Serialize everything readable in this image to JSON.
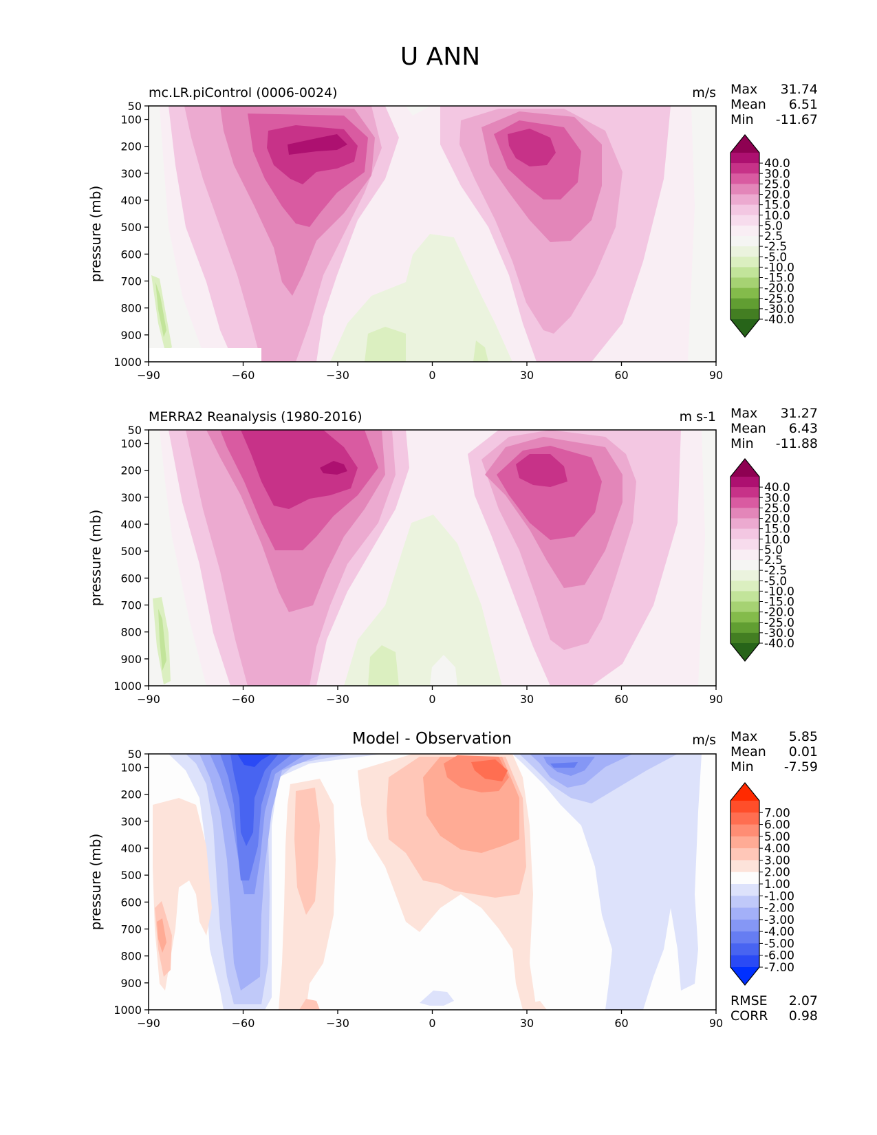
{
  "figure": {
    "title": "U ANN"
  },
  "chart_data": [
    {
      "type": "contour",
      "panel_title": "",
      "left_title": "mc.LR.piControl (0006-0024)",
      "units": "m/s",
      "ylabel": "pressure (mb)",
      "xlabel": "",
      "xlim": [
        -90,
        90
      ],
      "ylim": [
        1000,
        50
      ],
      "x_ticks": [
        "−90",
        "−60",
        "−30",
        "0",
        "30",
        "60",
        "90"
      ],
      "y_ticks": [
        "50",
        "100",
        "200",
        "300",
        "400",
        "500",
        "600",
        "700",
        "800",
        "900",
        "1000"
      ],
      "stats": [
        {
          "label": "Max",
          "value": "31.74"
        },
        {
          "label": "Mean",
          "value": "6.51"
        },
        {
          "label": "Min",
          "value": "-11.67"
        }
      ],
      "colorbar": {
        "labels": [
          "40.0",
          "30.0",
          "25.0",
          "20.0",
          "15.0",
          "10.0",
          "5.0",
          "2.5",
          "-2.5",
          "-5.0",
          "-10.0",
          "-15.0",
          "-20.0",
          "-25.0",
          "-30.0",
          "-40.0"
        ],
        "colors": [
          "#8e0152",
          "#ad1070",
          "#c73288",
          "#d95ba1",
          "#e386b9",
          "#ecaad0",
          "#f3c7e2",
          "#f7dced",
          "#f9eef4",
          "#f5f5f3",
          "#ebf3de",
          "#dbefc0",
          "#c2e49a",
          "#a6d273",
          "#84bb4b",
          "#619e32",
          "#437e22",
          "#276419"
        ]
      },
      "zonal_profile": [
        {
          "lat": -65,
          "levels": [
            {
              "p": 50,
              "u": 5
            },
            {
              "p": 100,
              "u": 10
            },
            {
              "p": 300,
              "u": 12
            },
            {
              "p": 700,
              "u": 9
            },
            {
              "p": 900,
              "u": 6
            }
          ]
        },
        {
          "lat": -45,
          "levels": [
            {
              "p": 100,
              "u": 20
            },
            {
              "p": 200,
              "u": 30
            },
            {
              "p": 300,
              "u": 27
            },
            {
              "p": 500,
              "u": 20
            },
            {
              "p": 700,
              "u": 15
            },
            {
              "p": 900,
              "u": 9
            }
          ]
        },
        {
          "lat": 0,
          "levels": [
            {
              "p": 100,
              "u": -2
            },
            {
              "p": 700,
              "u": -3
            },
            {
              "p": 900,
              "u": -5
            }
          ]
        },
        {
          "lat": 30,
          "levels": [
            {
              "p": 100,
              "u": 15
            },
            {
              "p": 200,
              "u": 27
            },
            {
              "p": 300,
              "u": 22
            },
            {
              "p": 500,
              "u": 14
            },
            {
              "p": 800,
              "u": 7
            }
          ]
        },
        {
          "lat": 75,
          "levels": [
            {
              "p": 100,
              "u": 5
            },
            {
              "p": 400,
              "u": 4
            }
          ]
        }
      ]
    },
    {
      "type": "contour",
      "panel_title": "",
      "left_title": "MERRA2 Reanalysis (1980-2016)",
      "units": "m s-1",
      "ylabel": "pressure (mb)",
      "xlabel": "",
      "xlim": [
        -90,
        90
      ],
      "ylim": [
        1000,
        50
      ],
      "x_ticks": [
        "−90",
        "−60",
        "−30",
        "0",
        "30",
        "60",
        "90"
      ],
      "y_ticks": [
        "50",
        "100",
        "200",
        "300",
        "400",
        "500",
        "600",
        "700",
        "800",
        "900",
        "1000"
      ],
      "stats": [
        {
          "label": "Max",
          "value": "31.27"
        },
        {
          "label": "Mean",
          "value": "6.43"
        },
        {
          "label": "Min",
          "value": "-11.88"
        }
      ],
      "colorbar": {
        "labels": [
          "40.0",
          "30.0",
          "25.0",
          "20.0",
          "15.0",
          "10.0",
          "5.0",
          "2.5",
          "-2.5",
          "-5.0",
          "-10.0",
          "-15.0",
          "-20.0",
          "-25.0",
          "-30.0",
          "-40.0"
        ],
        "colors": [
          "#8e0152",
          "#ad1070",
          "#c73288",
          "#d95ba1",
          "#e386b9",
          "#ecaad0",
          "#f3c7e2",
          "#f7dced",
          "#f9eef4",
          "#f5f5f3",
          "#ebf3de",
          "#dbefc0",
          "#c2e49a",
          "#a6d273",
          "#84bb4b",
          "#619e32",
          "#437e22",
          "#276419"
        ]
      },
      "zonal_profile": [
        {
          "lat": -55,
          "levels": [
            {
              "p": 50,
              "u": 25
            },
            {
              "p": 200,
              "u": 28
            },
            {
              "p": 300,
              "u": 25
            },
            {
              "p": 500,
              "u": 18
            },
            {
              "p": 700,
              "u": 12
            },
            {
              "p": 900,
              "u": 8
            }
          ]
        },
        {
          "lat": -30,
          "levels": [
            {
              "p": 200,
              "u": 31
            },
            {
              "p": 300,
              "u": 20
            }
          ]
        },
        {
          "lat": 0,
          "levels": [
            {
              "p": 100,
              "u": -2
            },
            {
              "p": 500,
              "u": -3
            },
            {
              "p": 900,
              "u": 1
            }
          ]
        },
        {
          "lat": 35,
          "levels": [
            {
              "p": 100,
              "u": 15
            },
            {
              "p": 200,
              "u": 26
            },
            {
              "p": 300,
              "u": 22
            },
            {
              "p": 500,
              "u": 14
            },
            {
              "p": 800,
              "u": 7
            }
          ]
        },
        {
          "lat": 80,
          "levels": [
            {
              "p": 100,
              "u": 4
            },
            {
              "p": 500,
              "u": 3
            }
          ]
        }
      ]
    },
    {
      "type": "contour",
      "panel_title": "Model - Observation",
      "left_title": "",
      "units": "m/s",
      "ylabel": "pressure (mb)",
      "xlabel": "",
      "xlim": [
        -90,
        90
      ],
      "ylim": [
        1000,
        50
      ],
      "x_ticks": [
        "−90",
        "−60",
        "−30",
        "0",
        "30",
        "60",
        "90"
      ],
      "y_ticks": [
        "50",
        "100",
        "200",
        "300",
        "400",
        "500",
        "600",
        "700",
        "800",
        "900",
        "1000"
      ],
      "stats": [
        {
          "label": "Max",
          "value": "5.85"
        },
        {
          "label": "Mean",
          "value": "0.01"
        },
        {
          "label": "Min",
          "value": "-7.59"
        }
      ],
      "bottom_stats": [
        {
          "label": "RMSE",
          "value": "2.07"
        },
        {
          "label": "CORR",
          "value": "0.98"
        }
      ],
      "colorbar": {
        "labels": [
          "7.00",
          "6.00",
          "5.00",
          "4.00",
          "3.00",
          "2.00",
          "1.00",
          "-1.00",
          "-2.00",
          "-3.00",
          "-4.00",
          "-5.00",
          "-6.00",
          "-7.00"
        ],
        "colors": [
          "#ff2a00",
          "#ff4e2a",
          "#ff6e51",
          "#ff8d74",
          "#ffab95",
          "#ffc7b8",
          "#fde3da",
          "#fdfdfd",
          "#dde2fb",
          "#c0c9f9",
          "#a3b0f8",
          "#8597f5",
          "#667df2",
          "#4864f1",
          "#2a4af5",
          "#0030ff"
        ]
      },
      "zonal_profile": [
        {
          "lat": -85,
          "levels": [
            {
              "p": 700,
              "u": 2
            }
          ]
        },
        {
          "lat": -60,
          "levels": [
            {
              "p": 50,
              "u": -7
            },
            {
              "p": 300,
              "u": -5
            },
            {
              "p": 500,
              "u": -3
            },
            {
              "p": 800,
              "u": -2
            }
          ]
        },
        {
          "lat": -40,
          "levels": [
            {
              "p": 300,
              "u": 2
            },
            {
              "p": 700,
              "u": 1
            }
          ]
        },
        {
          "lat": 15,
          "levels": [
            {
              "p": 100,
              "u": 5
            },
            {
              "p": 300,
              "u": 3
            },
            {
              "p": 500,
              "u": 2
            },
            {
              "p": 800,
              "u": 1
            }
          ]
        },
        {
          "lat": 45,
          "levels": [
            {
              "p": 100,
              "u": -4
            },
            {
              "p": 500,
              "u": -1
            }
          ]
        }
      ]
    }
  ]
}
